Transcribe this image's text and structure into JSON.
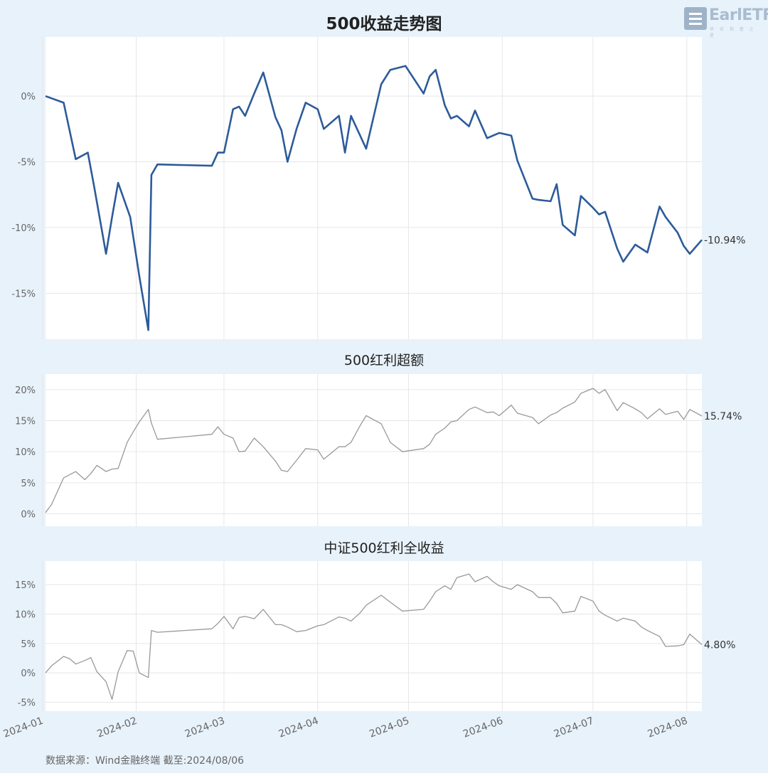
{
  "brand": {
    "logo_text": "EarlETF",
    "logo_sub": "早 安 指 基 之 星"
  },
  "source_note": "数据来源：Wind金融终端 截至:2024/08/06",
  "colors": {
    "main_line": "#2d5b9a",
    "sub_line": "#999999",
    "grid": "#e6e6e6",
    "background": "#e8f2fb",
    "panel": "#ffffff"
  },
  "chart_data": [
    {
      "type": "line",
      "title": "500收益走势图",
      "x": [
        "2024-01-02",
        "2024-01-08",
        "2024-01-12",
        "2024-01-16",
        "2024-01-18",
        "2024-01-22",
        "2024-01-24",
        "2024-01-26",
        "2024-01-30",
        "2024-02-02",
        "2024-02-05",
        "2024-02-06",
        "2024-02-08",
        "2024-02-26",
        "2024-02-28",
        "2024-03-01",
        "2024-03-04",
        "2024-03-06",
        "2024-03-08",
        "2024-03-11",
        "2024-03-14",
        "2024-03-18",
        "2024-03-20",
        "2024-03-22",
        "2024-03-25",
        "2024-03-28",
        "2024-04-01",
        "2024-04-03",
        "2024-04-08",
        "2024-04-10",
        "2024-04-12",
        "2024-04-15",
        "2024-04-17",
        "2024-04-22",
        "2024-04-25",
        "2024-04-30",
        "2024-05-06",
        "2024-05-08",
        "2024-05-10",
        "2024-05-13",
        "2024-05-15",
        "2024-05-17",
        "2024-05-21",
        "2024-05-23",
        "2024-05-27",
        "2024-05-29",
        "2024-05-31",
        "2024-06-04",
        "2024-06-06",
        "2024-06-11",
        "2024-06-13",
        "2024-06-17",
        "2024-06-19",
        "2024-06-21",
        "2024-06-25",
        "2024-06-27",
        "2024-07-01",
        "2024-07-03",
        "2024-07-05",
        "2024-07-09",
        "2024-07-11",
        "2024-07-15",
        "2024-07-17",
        "2024-07-19",
        "2024-07-23",
        "2024-07-25",
        "2024-07-29",
        "2024-07-31",
        "2024-08-02",
        "2024-08-06"
      ],
      "series": [
        {
          "values": [
            0.0,
            -0.5,
            -4.8,
            -4.3,
            -6.8,
            -12.0,
            -9.2,
            -6.6,
            -9.2,
            -13.7,
            -17.8,
            -6.0,
            -5.2,
            -5.3,
            -4.3,
            -4.3,
            -1.0,
            -0.8,
            -1.5,
            0.2,
            1.8,
            -1.6,
            -2.6,
            -5.0,
            -2.5,
            -0.5,
            -1.0,
            -2.5,
            -1.5,
            -4.3,
            -1.5,
            -3.0,
            -4.0,
            0.9,
            2.0,
            2.3,
            0.2,
            1.5,
            2.0,
            -0.7,
            -1.7,
            -1.5,
            -2.3,
            -1.1,
            -3.2,
            -3.0,
            -2.8,
            -3.0,
            -4.9,
            -7.8,
            -7.9,
            -8.0,
            -6.7,
            -9.8,
            -10.6,
            -7.6,
            -8.5,
            -9.0,
            -8.8,
            -11.6,
            -12.6,
            -11.3,
            -11.6,
            -11.9,
            -8.4,
            -9.2,
            -10.4,
            -11.4,
            -12.0,
            -10.94
          ]
        }
      ],
      "y_ticks": [
        "0%",
        "-5%",
        "-10%",
        "-15%"
      ],
      "ylim": [
        -18.5,
        4.5
      ],
      "last_label": "-10.94%"
    },
    {
      "type": "line",
      "title": "500红利超额",
      "x": [
        "2024-01-02",
        "2024-01-04",
        "2024-01-08",
        "2024-01-12",
        "2024-01-15",
        "2024-01-17",
        "2024-01-19",
        "2024-01-22",
        "2024-01-24",
        "2024-01-26",
        "2024-01-29",
        "2024-01-31",
        "2024-02-02",
        "2024-02-05",
        "2024-02-06",
        "2024-02-08",
        "2024-02-26",
        "2024-02-28",
        "2024-03-01",
        "2024-03-04",
        "2024-03-06",
        "2024-03-08",
        "2024-03-11",
        "2024-03-14",
        "2024-03-18",
        "2024-03-20",
        "2024-03-22",
        "2024-03-25",
        "2024-03-28",
        "2024-04-01",
        "2024-04-03",
        "2024-04-08",
        "2024-04-10",
        "2024-04-12",
        "2024-04-15",
        "2024-04-17",
        "2024-04-22",
        "2024-04-25",
        "2024-04-29",
        "2024-05-06",
        "2024-05-08",
        "2024-05-10",
        "2024-05-13",
        "2024-05-15",
        "2024-05-17",
        "2024-05-21",
        "2024-05-23",
        "2024-05-27",
        "2024-05-29",
        "2024-05-31",
        "2024-06-04",
        "2024-06-06",
        "2024-06-11",
        "2024-06-13",
        "2024-06-17",
        "2024-06-19",
        "2024-06-21",
        "2024-06-25",
        "2024-06-27",
        "2024-07-01",
        "2024-07-03",
        "2024-07-05",
        "2024-07-09",
        "2024-07-11",
        "2024-07-15",
        "2024-07-17",
        "2024-07-19",
        "2024-07-23",
        "2024-07-25",
        "2024-07-29",
        "2024-07-31",
        "2024-08-02",
        "2024-08-06"
      ],
      "series": [
        {
          "values": [
            0.2,
            1.5,
            5.8,
            6.8,
            5.5,
            6.5,
            7.8,
            6.8,
            7.2,
            7.3,
            11.5,
            13.2,
            14.8,
            16.8,
            14.6,
            12.0,
            12.8,
            14.0,
            12.8,
            12.2,
            10.0,
            10.1,
            12.2,
            10.8,
            8.5,
            7.0,
            6.8,
            8.6,
            10.5,
            10.3,
            8.8,
            10.8,
            10.8,
            11.5,
            14.2,
            15.8,
            14.5,
            11.5,
            10.0,
            10.5,
            11.2,
            12.8,
            13.8,
            14.8,
            15.0,
            16.8,
            17.2,
            16.3,
            16.4,
            15.8,
            17.5,
            16.2,
            15.5,
            14.5,
            15.9,
            16.3,
            17.0,
            18.0,
            19.4,
            20.2,
            19.4,
            20.0,
            16.6,
            17.9,
            16.9,
            16.3,
            15.3,
            16.9,
            16.0,
            16.5,
            15.2,
            16.8,
            15.74
          ]
        }
      ],
      "y_ticks": [
        "20%",
        "15%",
        "10%",
        "5%",
        "0%"
      ],
      "ylim": [
        -2,
        22.5
      ],
      "last_label": "15.74%"
    },
    {
      "type": "line",
      "title": "中证500红利全收益",
      "x": [
        "2024-01-02",
        "2024-01-04",
        "2024-01-08",
        "2024-01-10",
        "2024-01-12",
        "2024-01-15",
        "2024-01-17",
        "2024-01-19",
        "2024-01-22",
        "2024-01-24",
        "2024-01-26",
        "2024-01-29",
        "2024-01-31",
        "2024-02-02",
        "2024-02-05",
        "2024-02-06",
        "2024-02-08",
        "2024-02-26",
        "2024-02-28",
        "2024-03-01",
        "2024-03-04",
        "2024-03-06",
        "2024-03-08",
        "2024-03-11",
        "2024-03-14",
        "2024-03-18",
        "2024-03-20",
        "2024-03-22",
        "2024-03-25",
        "2024-03-28",
        "2024-04-01",
        "2024-04-03",
        "2024-04-08",
        "2024-04-10",
        "2024-04-12",
        "2024-04-15",
        "2024-04-17",
        "2024-04-22",
        "2024-04-25",
        "2024-04-29",
        "2024-05-06",
        "2024-05-08",
        "2024-05-10",
        "2024-05-13",
        "2024-05-15",
        "2024-05-17",
        "2024-05-21",
        "2024-05-23",
        "2024-05-27",
        "2024-05-29",
        "2024-05-31",
        "2024-06-04",
        "2024-06-06",
        "2024-06-11",
        "2024-06-13",
        "2024-06-17",
        "2024-06-19",
        "2024-06-21",
        "2024-06-25",
        "2024-06-27",
        "2024-07-01",
        "2024-07-03",
        "2024-07-05",
        "2024-07-09",
        "2024-07-11",
        "2024-07-15",
        "2024-07-17",
        "2024-07-19",
        "2024-07-23",
        "2024-07-25",
        "2024-07-29",
        "2024-07-31",
        "2024-08-02",
        "2024-08-06"
      ],
      "series": [
        {
          "values": [
            0.0,
            1.2,
            2.8,
            2.4,
            1.5,
            2.1,
            2.6,
            0.2,
            -1.5,
            -4.5,
            0.2,
            3.8,
            3.7,
            0.0,
            -0.8,
            7.2,
            6.9,
            7.5,
            8.4,
            9.6,
            7.5,
            9.4,
            9.6,
            9.2,
            10.8,
            8.2,
            8.2,
            7.8,
            7.0,
            7.2,
            8.0,
            8.2,
            9.5,
            9.3,
            8.8,
            10.2,
            11.5,
            13.2,
            12.0,
            10.5,
            10.8,
            12.2,
            13.8,
            14.8,
            14.2,
            16.2,
            16.8,
            15.5,
            16.4,
            15.5,
            14.8,
            14.2,
            15.0,
            13.8,
            12.8,
            12.8,
            11.8,
            10.2,
            10.5,
            13.0,
            12.2,
            10.5,
            9.8,
            8.8,
            9.3,
            8.8,
            7.8,
            7.2,
            6.2,
            4.5,
            4.6,
            4.8,
            6.6,
            4.8
          ]
        }
      ],
      "y_ticks": [
        "15%",
        "10%",
        "5%",
        "0%",
        "-5%"
      ],
      "ylim": [
        -6.5,
        19
      ],
      "last_label": "4.80%"
    }
  ],
  "x_ticks": [
    "2024-01",
    "2024-02",
    "2024-03",
    "2024-04",
    "2024-05",
    "2024-06",
    "2024-07",
    "2024-08"
  ]
}
